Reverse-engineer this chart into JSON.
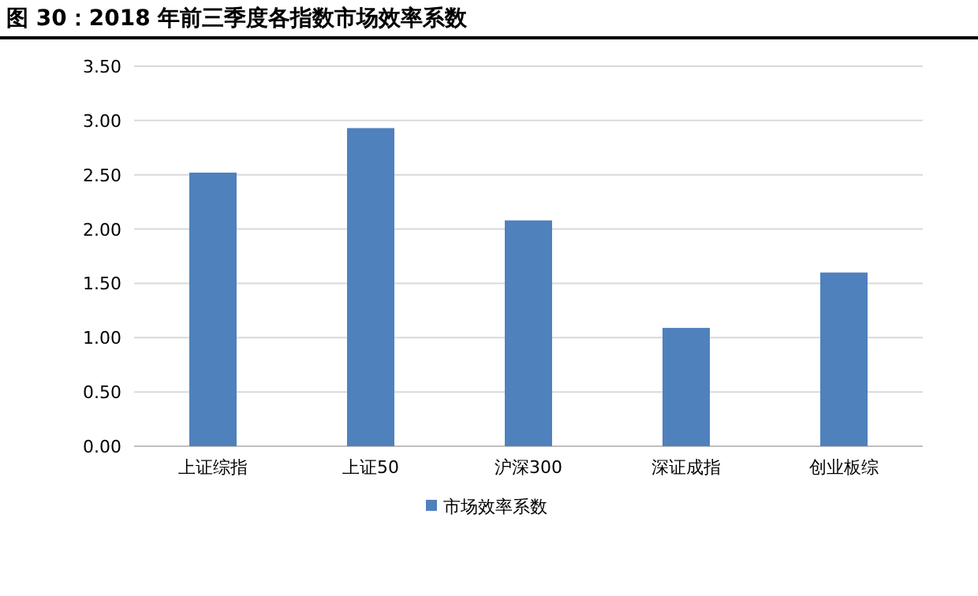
{
  "chart_data": {
    "type": "bar",
    "title": "图 30：2018 年前三季度各指数市场效率系数",
    "categories": [
      "上证综指",
      "上证50",
      "沪深300",
      "深证成指",
      "创业板综"
    ],
    "series": [
      {
        "name": "市场效率系数",
        "color": "#4f81bd",
        "values": [
          2.52,
          2.93,
          2.08,
          1.09,
          1.6
        ]
      }
    ],
    "ylim": [
      0,
      3.5
    ],
    "yticks": [
      {
        "value": 0,
        "label": "0.00"
      },
      {
        "value": 0.5,
        "label": "0.50"
      },
      {
        "value": 1,
        "label": "1.00"
      },
      {
        "value": 1.5,
        "label": "1.50"
      },
      {
        "value": 2,
        "label": "2.00"
      },
      {
        "value": 2.5,
        "label": "2.50"
      },
      {
        "value": 3,
        "label": "3.00"
      },
      {
        "value": 3.5,
        "label": "3.50"
      }
    ],
    "grid": "y",
    "legend": "bottom"
  }
}
